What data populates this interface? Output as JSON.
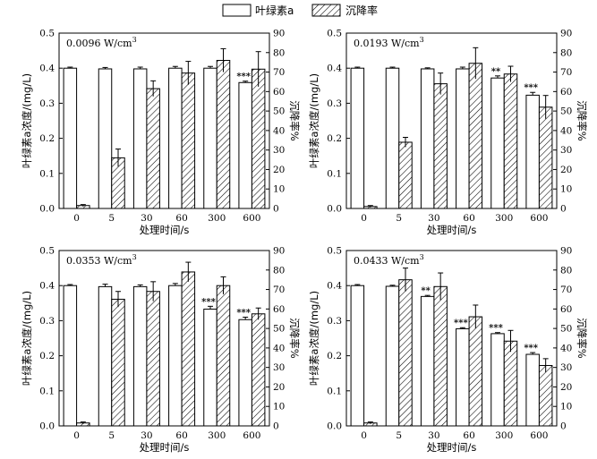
{
  "legend": {
    "items": [
      {
        "label": "叶绿素a",
        "pattern": "solid"
      },
      {
        "label": "沉降率",
        "pattern": "hatched"
      }
    ]
  },
  "chart_data": [
    {
      "type": "bar",
      "annotation": "0.0096 W/cm",
      "annotation_sup": "3",
      "xlabel": "处理时间/s",
      "ylabel_left": "叶绿素a浓度/(mg/L)",
      "ylabel_right": "沉降率%",
      "categories": [
        "0",
        "5",
        "30",
        "60",
        "300",
        "600"
      ],
      "ylim_left": [
        0,
        0.5
      ],
      "yticks_left": [
        0,
        0.1,
        0.2,
        0.3,
        0.4,
        0.5
      ],
      "ylim_right": [
        0,
        90
      ],
      "yticks_right": [
        0,
        10,
        20,
        30,
        40,
        50,
        60,
        70,
        80,
        90
      ],
      "series": [
        {
          "name": "叶绿素a",
          "axis": "left",
          "values": [
            0.4,
            0.398,
            0.398,
            0.4,
            0.4,
            0.359
          ],
          "errors": [
            0.003,
            0.004,
            0.005,
            0.005,
            0.005,
            0.004
          ]
        },
        {
          "name": "沉降率",
          "axis": "right",
          "values": [
            1.5,
            26,
            61.5,
            69.5,
            76,
            71.5
          ],
          "errors": [
            0.5,
            4.5,
            4,
            6,
            6,
            9
          ]
        }
      ],
      "significance": [
        "",
        "",
        "",
        "",
        "",
        "***"
      ]
    },
    {
      "type": "bar",
      "annotation": "0.0193 W/cm",
      "annotation_sup": "3",
      "xlabel": "处理时间/s",
      "ylabel_left": "叶绿素a浓度/(mg/L)",
      "ylabel_right": "沉降率%",
      "categories": [
        "0",
        "5",
        "30",
        "60",
        "300",
        "600"
      ],
      "ylim_left": [
        0,
        0.5
      ],
      "yticks_left": [
        0,
        0.1,
        0.2,
        0.3,
        0.4,
        0.5
      ],
      "ylim_right": [
        0,
        90
      ],
      "yticks_right": [
        0,
        10,
        20,
        30,
        40,
        50,
        60,
        70,
        80,
        90
      ],
      "series": [
        {
          "name": "叶绿素a",
          "axis": "left",
          "values": [
            0.4,
            0.4,
            0.398,
            0.398,
            0.372,
            0.323
          ],
          "errors": [
            0.003,
            0.003,
            0.003,
            0.005,
            0.006,
            0.008
          ]
        },
        {
          "name": "沉降率",
          "axis": "right",
          "values": [
            1,
            34,
            64,
            74.5,
            69,
            52
          ],
          "errors": [
            0.5,
            2.5,
            5.5,
            8,
            4,
            6
          ]
        }
      ],
      "significance": [
        "",
        "",
        "",
        "",
        "**",
        "***"
      ]
    },
    {
      "type": "bar",
      "annotation": "0.0353 W/cm",
      "annotation_sup": "3",
      "xlabel": "处理时间/s",
      "ylabel_left": "叶绿素a浓度/(mg/L)",
      "ylabel_right": "沉降率%",
      "categories": [
        "0",
        "5",
        "30",
        "60",
        "300",
        "600"
      ],
      "ylim_left": [
        0,
        0.5
      ],
      "yticks_left": [
        0,
        0.1,
        0.2,
        0.3,
        0.4,
        0.5
      ],
      "ylim_right": [
        0,
        90
      ],
      "yticks_right": [
        0,
        10,
        20,
        30,
        40,
        50,
        60,
        70,
        80,
        90
      ],
      "series": [
        {
          "name": "叶绿素a",
          "axis": "left",
          "values": [
            0.4,
            0.397,
            0.397,
            0.4,
            0.333,
            0.303
          ],
          "errors": [
            0.003,
            0.007,
            0.005,
            0.006,
            0.008,
            0.007
          ]
        },
        {
          "name": "沉降率",
          "axis": "right",
          "values": [
            1.5,
            65,
            69,
            79,
            72,
            57.5
          ],
          "errors": [
            0.5,
            4,
            5,
            5,
            4.5,
            3
          ]
        }
      ],
      "significance": [
        "",
        "",
        "",
        "",
        "***",
        "***"
      ]
    },
    {
      "type": "bar",
      "annotation": "0.0433 W/cm",
      "annotation_sup": "3",
      "xlabel": "处理时间/s",
      "ylabel_left": "叶绿素a浓度/(mg/L)",
      "ylabel_right": "沉降率%",
      "categories": [
        "0",
        "5",
        "30",
        "60",
        "300",
        "600"
      ],
      "ylim_left": [
        0,
        0.5
      ],
      "yticks_left": [
        0,
        0.1,
        0.2,
        0.3,
        0.4,
        0.5
      ],
      "ylim_right": [
        0,
        90
      ],
      "yticks_right": [
        0,
        10,
        20,
        30,
        40,
        50,
        60,
        70,
        80,
        90
      ],
      "series": [
        {
          "name": "叶绿素a",
          "axis": "left",
          "values": [
            0.4,
            0.398,
            0.369,
            0.277,
            0.263,
            0.204
          ],
          "errors": [
            0.003,
            0.003,
            0.003,
            0.003,
            0.003,
            0.005
          ]
        },
        {
          "name": "沉降率",
          "axis": "right",
          "values": [
            1.5,
            75,
            71.5,
            56,
            43.5,
            31
          ],
          "errors": [
            0.5,
            6,
            7,
            6,
            5.5,
            3.5
          ]
        }
      ],
      "significance": [
        "",
        "",
        "**",
        "***",
        "***",
        "***"
      ]
    }
  ]
}
